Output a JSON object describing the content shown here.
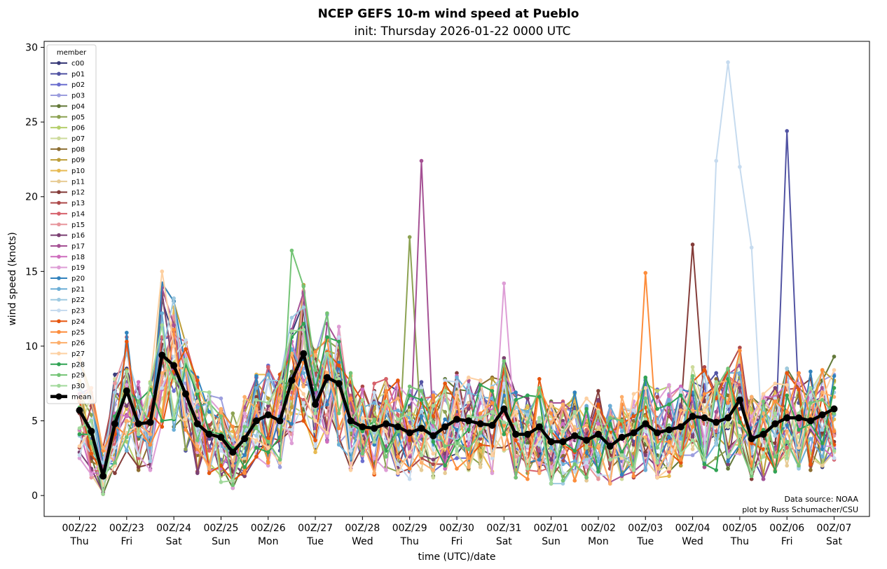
{
  "chart_data": {
    "type": "line",
    "title": "NCEP GEFS 10-m wind speed at Pueblo",
    "subtitle": "init: Thursday 2026-01-22 0000 UTC",
    "xlabel": "time (UTC)/date",
    "ylabel": "wind speed (knots)",
    "ylim": [
      -1.4,
      30.4
    ],
    "yticks": [
      0,
      5,
      10,
      15,
      20,
      25,
      30
    ],
    "x_unit": "hours since 2026-01-22 00Z (6-hourly)",
    "xlim": [
      -18,
      402
    ],
    "xticks": [
      {
        "hour": 0,
        "label": "00Z/22",
        "day": "Thu"
      },
      {
        "hour": 24,
        "label": "00Z/23",
        "day": "Fri"
      },
      {
        "hour": 48,
        "label": "00Z/24",
        "day": "Sat"
      },
      {
        "hour": 72,
        "label": "00Z/25",
        "day": "Sun"
      },
      {
        "hour": 96,
        "label": "00Z/26",
        "day": "Mon"
      },
      {
        "hour": 120,
        "label": "00Z/27",
        "day": "Tue"
      },
      {
        "hour": 144,
        "label": "00Z/28",
        "day": "Wed"
      },
      {
        "hour": 168,
        "label": "00Z/29",
        "day": "Thu"
      },
      {
        "hour": 192,
        "label": "00Z/30",
        "day": "Fri"
      },
      {
        "hour": 216,
        "label": "00Z/31",
        "day": "Sat"
      },
      {
        "hour": 240,
        "label": "00Z/01",
        "day": "Sun"
      },
      {
        "hour": 264,
        "label": "00Z/02",
        "day": "Mon"
      },
      {
        "hour": 288,
        "label": "00Z/03",
        "day": "Tue"
      },
      {
        "hour": 312,
        "label": "00Z/04",
        "day": "Wed"
      },
      {
        "hour": 336,
        "label": "00Z/05",
        "day": "Thu"
      },
      {
        "hour": 360,
        "label": "00Z/06",
        "day": "Fri"
      },
      {
        "hour": 384,
        "label": "00Z/07",
        "day": "Sat"
      }
    ],
    "x_start_hour": 0,
    "x_step_hours": 6,
    "legend_title": "member",
    "legend_position": "upper-left",
    "annotation": [
      "Data source: NOAA",
      "plot by Russ Schumacher/CSU"
    ],
    "series": [
      {
        "name": "c00",
        "color": "#393b79"
      },
      {
        "name": "p01",
        "color": "#5254a3"
      },
      {
        "name": "p02",
        "color": "#6b6ecf"
      },
      {
        "name": "p03",
        "color": "#9c9ede"
      },
      {
        "name": "p04",
        "color": "#637939"
      },
      {
        "name": "p05",
        "color": "#8ca252"
      },
      {
        "name": "p06",
        "color": "#b5cf6b"
      },
      {
        "name": "p07",
        "color": "#cedb9c"
      },
      {
        "name": "p08",
        "color": "#8c6d31"
      },
      {
        "name": "p09",
        "color": "#bd9e39"
      },
      {
        "name": "p10",
        "color": "#e7ba52"
      },
      {
        "name": "p11",
        "color": "#e7cb94"
      },
      {
        "name": "p12",
        "color": "#843c39"
      },
      {
        "name": "p13",
        "color": "#ad494a"
      },
      {
        "name": "p14",
        "color": "#d6616b"
      },
      {
        "name": "p15",
        "color": "#e7969c"
      },
      {
        "name": "p16",
        "color": "#7b4173"
      },
      {
        "name": "p17",
        "color": "#a55194"
      },
      {
        "name": "p18",
        "color": "#ce6dbd"
      },
      {
        "name": "p19",
        "color": "#de9ed6"
      },
      {
        "name": "p20",
        "color": "#3182bd"
      },
      {
        "name": "p21",
        "color": "#6baed6"
      },
      {
        "name": "p22",
        "color": "#9ecae1"
      },
      {
        "name": "p23",
        "color": "#c6dbef"
      },
      {
        "name": "p24",
        "color": "#e6550d"
      },
      {
        "name": "p25",
        "color": "#fd8d3c"
      },
      {
        "name": "p26",
        "color": "#fdae6b"
      },
      {
        "name": "p27",
        "color": "#fdd0a2"
      },
      {
        "name": "p28",
        "color": "#31a354"
      },
      {
        "name": "p29",
        "color": "#74c476"
      },
      {
        "name": "p30",
        "color": "#a1d99b"
      },
      {
        "name": "mean",
        "color": "#000000",
        "values": [
          5.7,
          4.3,
          1.3,
          4.8,
          7.0,
          4.8,
          4.9,
          9.4,
          8.7,
          6.8,
          4.8,
          4.1,
          3.9,
          2.9,
          3.8,
          5.0,
          5.4,
          5.0,
          7.7,
          9.5,
          6.1,
          7.9,
          7.5,
          5.0,
          4.6,
          4.5,
          4.8,
          4.6,
          4.2,
          4.5,
          4.0,
          4.6,
          5.1,
          5.0,
          4.8,
          4.7,
          5.8,
          4.1,
          4.1,
          4.6,
          3.6,
          3.6,
          4.0,
          3.7,
          4.1,
          3.3,
          3.9,
          4.2,
          4.8,
          4.2,
          4.4,
          4.6,
          5.3,
          5.2,
          4.9,
          5.2,
          6.4,
          3.8,
          4.1,
          4.8,
          5.2,
          5.2,
          5.0,
          5.4,
          5.8
        ]
      }
    ]
  }
}
